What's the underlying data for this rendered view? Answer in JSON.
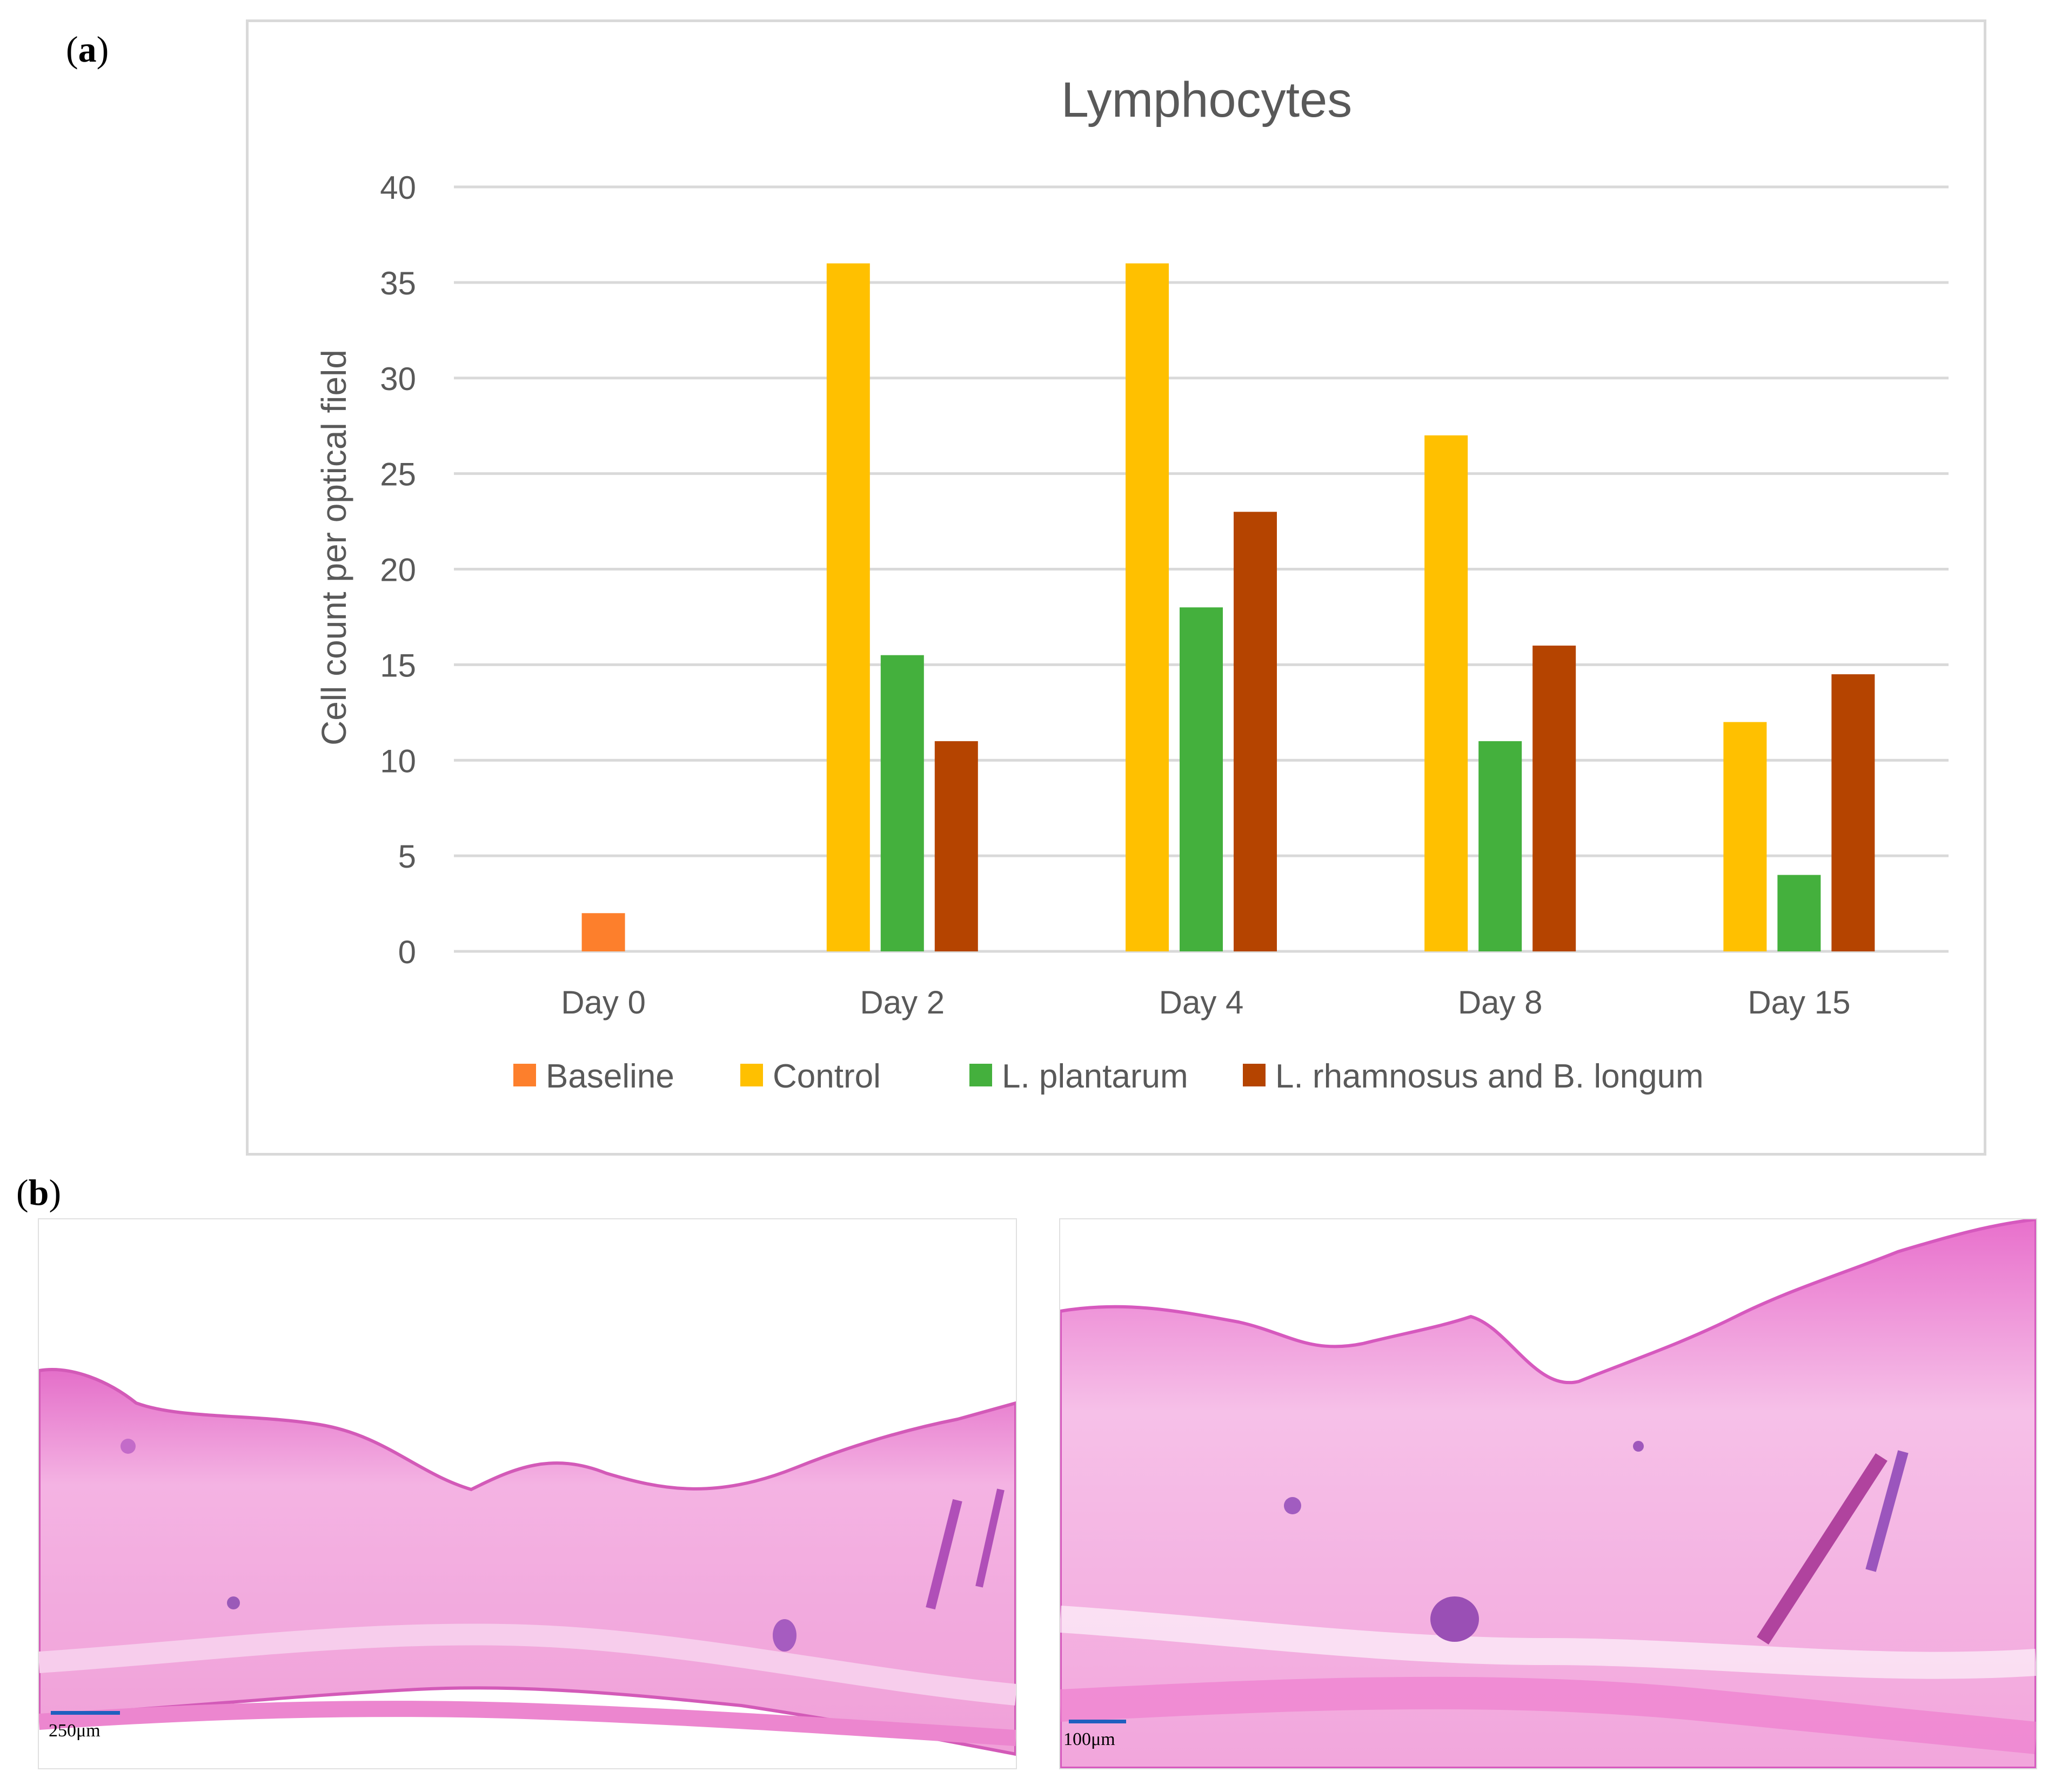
{
  "panel_a": {
    "label_letter": "a"
  },
  "panel_b": {
    "label_letter": "b"
  },
  "chart_data": {
    "type": "bar",
    "title": "Lymphocytes",
    "xlabel": "",
    "ylabel": "Cell count per optical field",
    "ylim": [
      0,
      40
    ],
    "yticks": [
      0,
      5,
      10,
      15,
      20,
      25,
      30,
      35,
      40
    ],
    "categories": [
      "Day 0",
      "Day 2",
      "Day 4",
      "Day 8",
      "Day 15"
    ],
    "legend_position": "bottom",
    "grid": true,
    "series": [
      {
        "name": "Baseline",
        "color": "#fd7f2c",
        "values": [
          2,
          null,
          null,
          null,
          null
        ]
      },
      {
        "name": "Control",
        "color": "#ffc000",
        "values": [
          null,
          36,
          36,
          27,
          12
        ]
      },
      {
        "name": "L. plantarum",
        "color": "#44b03d",
        "values": [
          null,
          15.5,
          18,
          11,
          4
        ]
      },
      {
        "name": "L. rhamnosus and B. longum",
        "color": "#b54400",
        "values": [
          null,
          11,
          23,
          16,
          14.5
        ]
      }
    ]
  },
  "micrographs": [
    {
      "scale_label": "250μm"
    },
    {
      "scale_label": "100μm"
    }
  ]
}
